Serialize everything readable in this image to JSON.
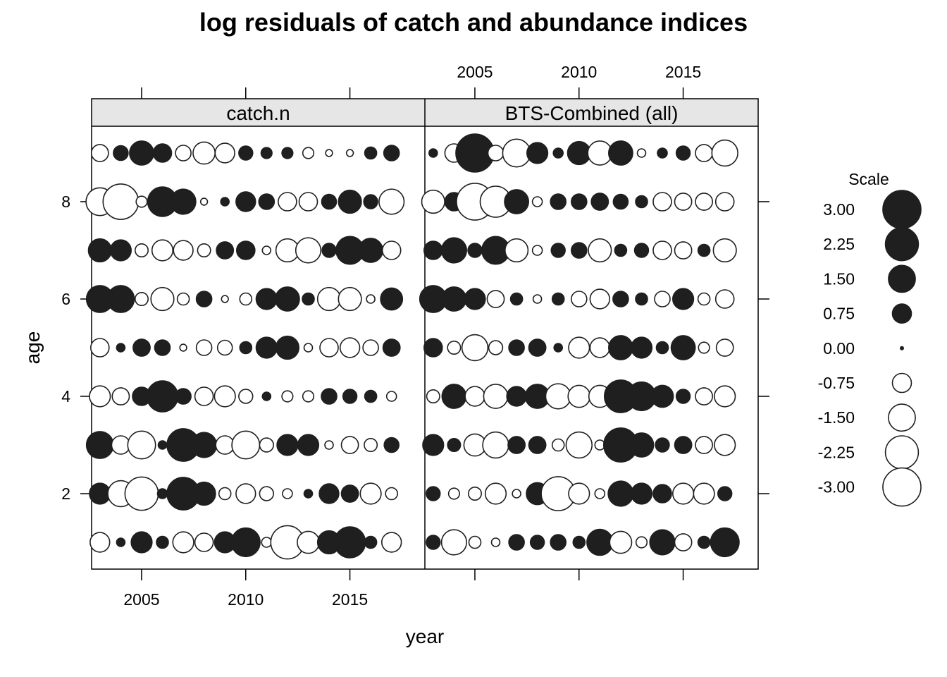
{
  "title": "log residuals of catch and abundance indices",
  "xlabel": "year",
  "ylabel": "age",
  "legend": {
    "title": "Scale",
    "entries": [
      {
        "label": "3.00",
        "value": 3.0
      },
      {
        "label": "2.25",
        "value": 2.25
      },
      {
        "label": "1.50",
        "value": 1.5
      },
      {
        "label": "0.75",
        "value": 0.75
      },
      {
        "label": "0.00",
        "value": 0.0
      },
      {
        "label": "-0.75",
        "value": -0.75
      },
      {
        "label": "-1.50",
        "value": -1.5
      },
      {
        "label": "-2.25",
        "value": -2.25
      },
      {
        "label": "-3.00",
        "value": -3.0
      }
    ]
  },
  "colors": {
    "positive": "#1f1f1f",
    "negative": "#ffffff",
    "outline": "#1f1f1f",
    "strip": "#e6e6e6"
  },
  "chart_data": {
    "type": "scatter",
    "subtype": "bubble",
    "title": "log residuals of catch and abundance indices",
    "xlabel": "year",
    "ylabel": "age",
    "x": [
      2003,
      2004,
      2005,
      2006,
      2007,
      2008,
      2009,
      2010,
      2011,
      2012,
      2013,
      2014,
      2015,
      2016,
      2017
    ],
    "ages": [
      1,
      2,
      3,
      4,
      5,
      6,
      7,
      8,
      9
    ],
    "xlim": [
      2002.6,
      2018.6
    ],
    "ylim": [
      0.45,
      9.55
    ],
    "x_ticks": [
      2005,
      2010,
      2015
    ],
    "y_ticks": [
      2,
      4,
      6,
      8
    ],
    "panels": [
      {
        "name": "catch.n",
        "residuals": [
          [
            -0.8,
            0.15,
            0.9,
            0.3,
            -0.9,
            -0.7,
            0.9,
            1.7,
            -0.2,
            -2.3,
            -1.0,
            1.1,
            2.0,
            0.3,
            -0.8
          ],
          [
            0.9,
            -1.4,
            -2.3,
            0.2,
            2.2,
            1.1,
            -0.3,
            -0.8,
            -0.4,
            -0.2,
            0.15,
            0.8,
            0.6,
            -0.9,
            -0.3
          ],
          [
            1.5,
            -0.7,
            -1.6,
            0.15,
            2.2,
            1.3,
            -0.7,
            -1.6,
            -0.4,
            0.9,
            0.9,
            -0.15,
            -0.6,
            -0.35,
            0.45
          ],
          [
            -0.9,
            -0.6,
            0.7,
            2.0,
            0.5,
            -0.7,
            -0.9,
            -0.4,
            0.15,
            -0.25,
            -0.25,
            0.5,
            0.4,
            0.3,
            -0.2
          ],
          [
            -0.7,
            0.15,
            0.6,
            0.5,
            -0.1,
            -0.5,
            -0.45,
            0.3,
            0.9,
            1.1,
            -0.15,
            -0.7,
            -0.8,
            -0.5,
            0.6
          ],
          [
            1.5,
            1.5,
            -0.35,
            -1.1,
            -0.3,
            0.5,
            -0.1,
            -0.3,
            0.9,
            1.2,
            0.3,
            -1.1,
            -1.1,
            -0.15,
            1.0
          ],
          [
            1.1,
            0.9,
            -0.35,
            -0.9,
            -0.8,
            -0.35,
            0.6,
            0.7,
            -0.15,
            -1.1,
            -1.3,
            0.4,
            1.6,
            1.2,
            -0.7
          ],
          [
            -1.6,
            -2.6,
            -0.25,
            1.8,
            1.3,
            -0.1,
            0.15,
            0.8,
            0.5,
            -0.7,
            -0.7,
            0.45,
            1.1,
            0.4,
            -1.3
          ],
          [
            -0.6,
            0.45,
            1.2,
            0.7,
            -0.5,
            -1.0,
            -0.8,
            0.4,
            0.25,
            0.25,
            -0.25,
            -0.1,
            -0.1,
            0.3,
            0.5
          ]
        ]
      },
      {
        "name": "BTS-Combined (all)",
        "residuals": [
          [
            0.4,
            -1.3,
            -0.3,
            -0.15,
            0.5,
            0.4,
            0.5,
            0.3,
            1.4,
            -1.0,
            -0.25,
            1.3,
            -0.6,
            0.3,
            1.7
          ],
          [
            0.4,
            -0.25,
            -0.35,
            -0.9,
            -0.15,
            1.0,
            -2.4,
            -0.9,
            -0.2,
            1.3,
            0.9,
            0.7,
            -0.9,
            -0.9,
            0.4
          ],
          [
            0.9,
            0.35,
            -1.0,
            -1.4,
            0.6,
            0.6,
            -0.3,
            -1.4,
            -0.2,
            2.4,
            1.2,
            0.4,
            0.6,
            -0.6,
            -0.9
          ],
          [
            -0.35,
            1.2,
            -0.8,
            -1.2,
            0.8,
            1.2,
            -1.3,
            -1.0,
            -1.0,
            2.2,
            1.7,
            1.0,
            0.4,
            -0.6,
            -0.9
          ],
          [
            0.7,
            -0.35,
            -1.4,
            -0.4,
            0.5,
            0.6,
            0.15,
            -0.9,
            -0.8,
            1.2,
            0.9,
            0.3,
            1.2,
            -0.25,
            -0.6
          ],
          [
            1.5,
            1.2,
            0.9,
            -0.6,
            0.3,
            -0.15,
            0.3,
            -0.5,
            -0.8,
            0.5,
            0.3,
            -0.5,
            0.9,
            -0.3,
            -0.7
          ],
          [
            0.7,
            1.3,
            0.4,
            1.6,
            -1.1,
            -0.2,
            0.4,
            0.5,
            -1.1,
            0.3,
            0.4,
            -0.7,
            -0.6,
            0.3,
            -1.1
          ],
          [
            -1.1,
            0.7,
            -2.8,
            -2.0,
            1.2,
            -0.2,
            0.5,
            0.5,
            0.6,
            0.45,
            0.3,
            -0.7,
            -0.6,
            -0.6,
            -0.7
          ],
          [
            0.15,
            -0.7,
            3.0,
            -0.5,
            -1.6,
            0.9,
            0.2,
            1.1,
            -1.2,
            1.2,
            -0.15,
            0.2,
            0.4,
            -0.6,
            -1.4
          ]
        ]
      }
    ]
  }
}
